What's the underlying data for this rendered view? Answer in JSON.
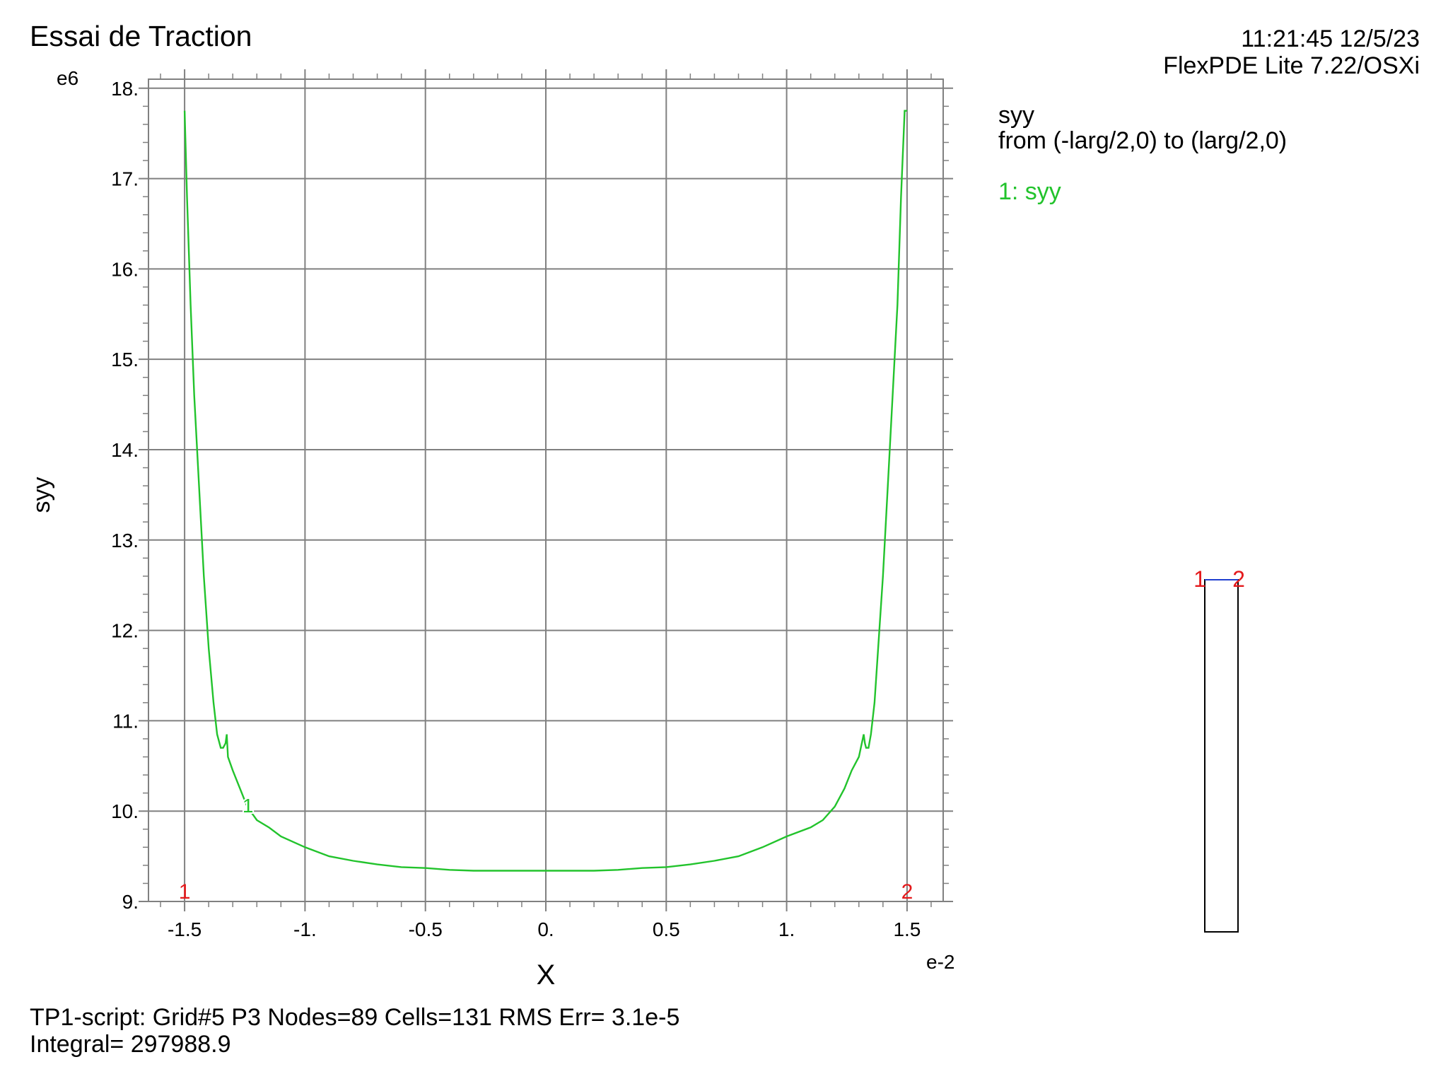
{
  "header": {
    "title": "Essai de Traction",
    "timestamp": "11:21:45 12/5/23",
    "software": "FlexPDE Lite 7.22/OSXi"
  },
  "legend": {
    "variable": "syy",
    "path": "from (-larg/2,0) to (larg/2,0)",
    "series_label": "1: syy"
  },
  "footer": {
    "line1": "TP1-script:  Grid#5  P3  Nodes=89 Cells=131 RMS Err= 3.1e-5",
    "line2": "Integral=  297988.9"
  },
  "colors": {
    "curve": "#22c32c",
    "marker": "#e41a1c",
    "grid": "#808080",
    "path_line": "#1f3fd0"
  },
  "chart_data": {
    "type": "line",
    "xlabel": "X",
    "ylabel": "syy",
    "x_exponent": "e-2",
    "y_exponent": "e6",
    "xlim": [
      -1.65,
      1.65
    ],
    "ylim": [
      9.0,
      18.1
    ],
    "x_ticks": [
      -1.5,
      -1.0,
      -0.5,
      0.0,
      0.5,
      1.0,
      1.5
    ],
    "x_tick_labels": [
      "-1.5",
      "-1.",
      "-0.5",
      "0.",
      "0.5",
      "1.",
      "1.5"
    ],
    "y_ticks": [
      9,
      10,
      11,
      12,
      13,
      14,
      15,
      16,
      17,
      18
    ],
    "y_tick_labels": [
      "9.",
      "10.",
      "11.",
      "12.",
      "13.",
      "14.",
      "15.",
      "16.",
      "17.",
      "18."
    ],
    "grid": true,
    "series": [
      {
        "label_marker": "1",
        "x": [
          -1.5,
          -1.49,
          -1.475,
          -1.46,
          -1.44,
          -1.42,
          -1.4,
          -1.38,
          -1.365,
          -1.35,
          -1.34,
          -1.33,
          -1.325,
          -1.32,
          -1.3,
          -1.27,
          -1.24,
          -1.2,
          -1.15,
          -1.1,
          -1.0,
          -0.9,
          -0.8,
          -0.7,
          -0.6,
          -0.5,
          -0.4,
          -0.3,
          -0.2,
          -0.1,
          0.0,
          0.1,
          0.2,
          0.3,
          0.4,
          0.5,
          0.6,
          0.7,
          0.8,
          0.9,
          1.0,
          1.1,
          1.15,
          1.2,
          1.24,
          1.27,
          1.3,
          1.32,
          1.325,
          1.33,
          1.34,
          1.35,
          1.365,
          1.38,
          1.4,
          1.42,
          1.44,
          1.46,
          1.475,
          1.49,
          1.5
        ],
        "y": [
          17.75,
          16.8,
          15.6,
          14.6,
          13.6,
          12.6,
          11.8,
          11.2,
          10.85,
          10.7,
          10.7,
          10.75,
          10.85,
          10.6,
          10.45,
          10.25,
          10.05,
          9.9,
          9.82,
          9.72,
          9.6,
          9.5,
          9.45,
          9.41,
          9.38,
          9.37,
          9.35,
          9.34,
          9.34,
          9.34,
          9.34,
          9.34,
          9.34,
          9.35,
          9.37,
          9.38,
          9.41,
          9.45,
          9.5,
          9.6,
          9.72,
          9.82,
          9.9,
          10.05,
          10.25,
          10.45,
          10.6,
          10.85,
          10.75,
          10.7,
          10.7,
          10.85,
          11.2,
          11.8,
          12.6,
          13.6,
          14.6,
          15.6,
          16.8,
          17.75,
          17.75
        ]
      }
    ],
    "endpoint_markers": [
      {
        "label": "1",
        "x": -1.5
      },
      {
        "label": "2",
        "x": 1.5
      }
    ],
    "inset_markers": [
      "1",
      "2"
    ]
  }
}
